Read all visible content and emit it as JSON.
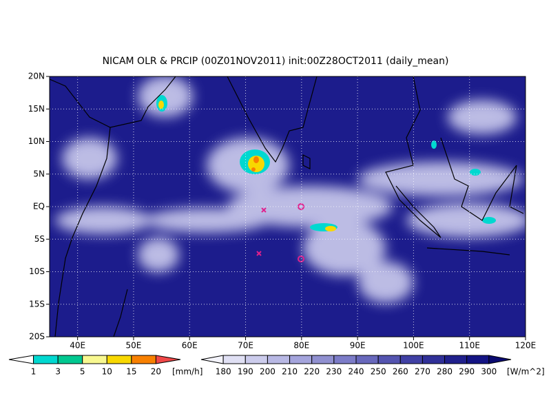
{
  "map": {
    "title": "NICAM OLR & PRCIP (00Z01NOV2011) init:00Z28OCT2011 (daily_mean)",
    "lonlim": [
      35,
      120
    ],
    "latlim": [
      -20,
      20
    ],
    "lon_ticks": [
      {
        "value": 40,
        "label": "40E"
      },
      {
        "value": 50,
        "label": "50E"
      },
      {
        "value": 60,
        "label": "60E"
      },
      {
        "value": 70,
        "label": "70E"
      },
      {
        "value": 80,
        "label": "80E"
      },
      {
        "value": 90,
        "label": "90E"
      },
      {
        "value": 100,
        "label": "100E"
      },
      {
        "value": 110,
        "label": "110E"
      },
      {
        "value": 120,
        "label": "120E"
      }
    ],
    "lat_ticks": [
      {
        "value": 20,
        "label": "20N"
      },
      {
        "value": 15,
        "label": "15N"
      },
      {
        "value": 10,
        "label": "10N"
      },
      {
        "value": 5,
        "label": "5N"
      },
      {
        "value": 0,
        "label": "EQ"
      },
      {
        "value": -5,
        "label": "5S"
      },
      {
        "value": -10,
        "label": "10S"
      },
      {
        "value": -15,
        "label": "15S"
      },
      {
        "value": -20,
        "label": "20S"
      }
    ],
    "grid": true
  },
  "precip_colorbar": {
    "unit": "[mm/h]",
    "ticks": [
      1,
      3,
      5,
      10,
      15,
      20
    ],
    "colors": [
      "#ffffff",
      "#00d8d0",
      "#00c890",
      "#f8f890",
      "#f8d800",
      "#f88000",
      "#f04848"
    ]
  },
  "olr_colorbar": {
    "unit": "[W/m^2]",
    "ticks": [
      180,
      190,
      200,
      210,
      220,
      230,
      240,
      250,
      260,
      270,
      280,
      290,
      300
    ],
    "colors": [
      "#f4f4fc",
      "#e0e0f4",
      "#ccccec",
      "#b8b8e4",
      "#a4a4dc",
      "#9090d0",
      "#7c7cc8",
      "#6868bc",
      "#5454b0",
      "#4040a4",
      "#303098",
      "#20208c",
      "#141484",
      "#0a0a70"
    ]
  }
}
